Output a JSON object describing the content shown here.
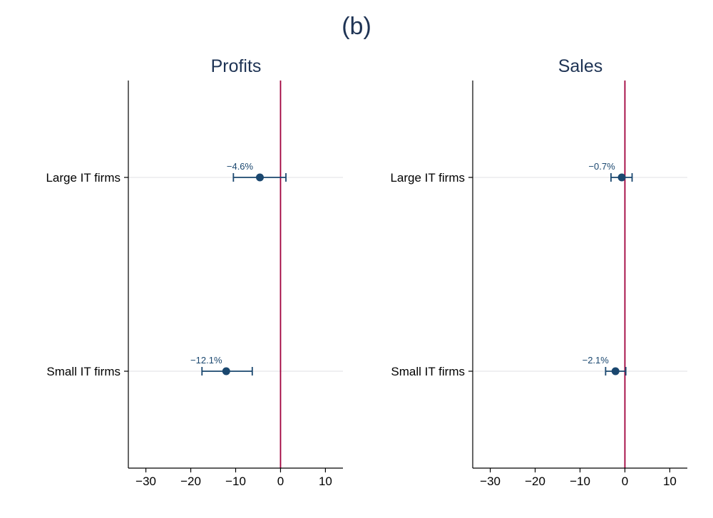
{
  "figure_title": "(b)",
  "colors": {
    "marker": "#1a476f",
    "zero_line": "#a0003c",
    "grid": "#e6e8eb",
    "axis": "#000000",
    "title": "#1e3354"
  },
  "chart_data": [
    {
      "type": "scatter",
      "title": "Profits",
      "xlabel": "",
      "ylabel": "",
      "xlim": [
        -32,
        12
      ],
      "xticks": [
        -30,
        -20,
        -10,
        0,
        10
      ],
      "xtick_labels": [
        "−30",
        "−20",
        "−10",
        "0",
        "10"
      ],
      "reference_line_x": 0,
      "grid": true,
      "categories": [
        "Large IT firms",
        "Small IT firms"
      ],
      "estimates": [
        -4.6,
        -12.1
      ],
      "ci_low": [
        -10.5,
        -17.5
      ],
      "ci_high": [
        1.2,
        -6.3
      ],
      "labels": [
        "−4.6%",
        "−12.1%"
      ]
    },
    {
      "type": "scatter",
      "title": "Sales",
      "xlabel": "",
      "ylabel": "",
      "xlim": [
        -32,
        12
      ],
      "xticks": [
        -30,
        -20,
        -10,
        0,
        10
      ],
      "xtick_labels": [
        "−30",
        "−20",
        "−10",
        "0",
        "10"
      ],
      "reference_line_x": 0,
      "grid": true,
      "categories": [
        "Large IT firms",
        "Small IT firms"
      ],
      "estimates": [
        -0.7,
        -2.1
      ],
      "ci_low": [
        -3.1,
        -4.3
      ],
      "ci_high": [
        1.6,
        0.2
      ],
      "labels": [
        "−0.7%",
        "−2.1%"
      ]
    }
  ]
}
